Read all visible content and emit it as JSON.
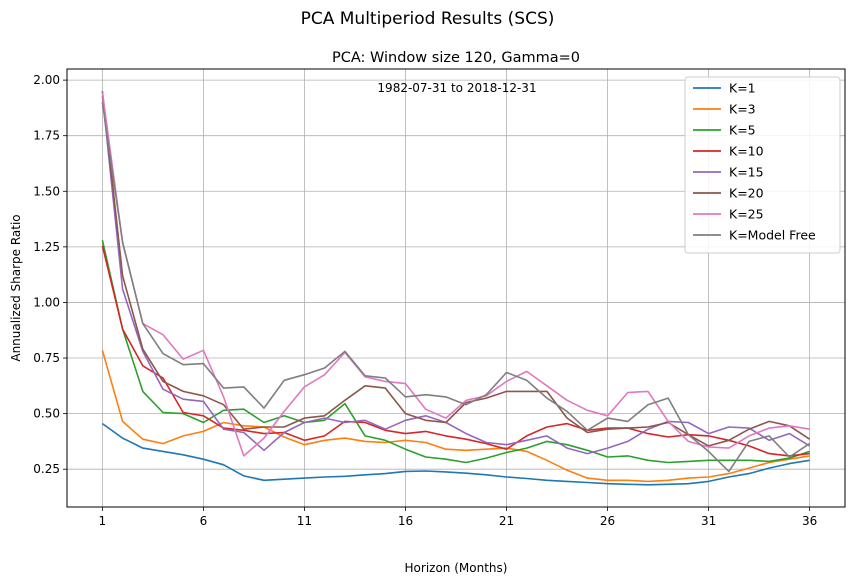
{
  "figure": {
    "suptitle": "PCA Multiperiod Results (SCS)",
    "title": "PCA: Window size 120, Gamma=0",
    "annotation": "1982-07-31 to 2018-12-31"
  },
  "chart_data": {
    "type": "line",
    "title": "PCA: Window size 120, Gamma=0",
    "xlabel": "Horizon (Months)",
    "ylabel": "Annualized Sharpe Ratio",
    "xlim": [
      -0.75,
      37.75
    ],
    "ylim": [
      0.08,
      2.05
    ],
    "xticks": [
      1,
      6,
      11,
      16,
      21,
      26,
      31,
      36
    ],
    "yticks": [
      "0.25",
      "0.50",
      "0.75",
      "1.00",
      "1.25",
      "1.50",
      "1.75",
      "2.00"
    ],
    "ytick_values": [
      0.25,
      0.5,
      0.75,
      1.0,
      1.25,
      1.5,
      1.75,
      2.0
    ],
    "grid": true,
    "legend_position": "top-right",
    "x": [
      1,
      2,
      3,
      4,
      5,
      6,
      7,
      8,
      9,
      10,
      11,
      12,
      13,
      14,
      15,
      16,
      17,
      18,
      19,
      20,
      21,
      22,
      23,
      24,
      25,
      26,
      27,
      28,
      29,
      30,
      31,
      32,
      33,
      34,
      35,
      36
    ],
    "series": [
      {
        "name": "K=1",
        "color": "#1f77b4",
        "values": [
          0.455,
          0.39,
          0.345,
          0.33,
          0.315,
          0.295,
          0.27,
          0.22,
          0.2,
          0.205,
          0.21,
          0.215,
          0.218,
          0.225,
          0.23,
          0.24,
          0.242,
          0.238,
          0.232,
          0.225,
          0.215,
          0.208,
          0.2,
          0.195,
          0.19,
          0.185,
          0.182,
          0.18,
          0.182,
          0.185,
          0.195,
          0.215,
          0.23,
          0.255,
          0.275,
          0.29
        ]
      },
      {
        "name": "K=3",
        "color": "#ff7f0e",
        "values": [
          0.785,
          0.465,
          0.385,
          0.365,
          0.4,
          0.42,
          0.46,
          0.445,
          0.44,
          0.395,
          0.36,
          0.38,
          0.39,
          0.375,
          0.37,
          0.38,
          0.37,
          0.34,
          0.335,
          0.34,
          0.345,
          0.33,
          0.29,
          0.245,
          0.21,
          0.2,
          0.2,
          0.195,
          0.2,
          0.21,
          0.215,
          0.23,
          0.255,
          0.28,
          0.295,
          0.31
        ]
      },
      {
        "name": "K=5",
        "color": "#2ca02c",
        "values": [
          1.28,
          0.88,
          0.6,
          0.505,
          0.5,
          0.46,
          0.515,
          0.52,
          0.46,
          0.49,
          0.46,
          0.47,
          0.545,
          0.4,
          0.38,
          0.34,
          0.305,
          0.295,
          0.28,
          0.3,
          0.325,
          0.345,
          0.375,
          0.36,
          0.335,
          0.305,
          0.31,
          0.29,
          0.28,
          0.285,
          0.29,
          0.29,
          0.29,
          0.285,
          0.3,
          0.33
        ]
      },
      {
        "name": "K=10",
        "color": "#d62728",
        "values": [
          1.255,
          0.88,
          0.715,
          0.66,
          0.505,
          0.49,
          0.435,
          0.425,
          0.41,
          0.415,
          0.38,
          0.4,
          0.465,
          0.46,
          0.425,
          0.41,
          0.42,
          0.4,
          0.385,
          0.365,
          0.34,
          0.4,
          0.44,
          0.455,
          0.425,
          0.435,
          0.435,
          0.41,
          0.395,
          0.405,
          0.4,
          0.38,
          0.355,
          0.32,
          0.31,
          0.32
        ]
      },
      {
        "name": "K=15",
        "color": "#9467bd",
        "values": [
          1.93,
          1.06,
          0.78,
          0.61,
          0.565,
          0.555,
          0.43,
          0.415,
          0.335,
          0.415,
          0.46,
          0.48,
          0.46,
          0.47,
          0.43,
          0.47,
          0.49,
          0.46,
          0.41,
          0.37,
          0.36,
          0.38,
          0.4,
          0.345,
          0.32,
          0.345,
          0.375,
          0.43,
          0.465,
          0.46,
          0.41,
          0.44,
          0.435,
          0.38,
          0.41,
          0.355
        ]
      },
      {
        "name": "K=20",
        "color": "#8c564b",
        "values": [
          1.95,
          1.12,
          0.79,
          0.645,
          0.6,
          0.58,
          0.54,
          0.43,
          0.44,
          0.44,
          0.48,
          0.49,
          0.56,
          0.625,
          0.615,
          0.5,
          0.47,
          0.46,
          0.55,
          0.57,
          0.6,
          0.6,
          0.6,
          0.48,
          0.415,
          0.43,
          0.435,
          0.44,
          0.46,
          0.405,
          0.355,
          0.38,
          0.43,
          0.465,
          0.445,
          0.385
        ]
      },
      {
        "name": "K=25",
        "color": "#e377c2",
        "values": [
          1.945,
          1.27,
          0.905,
          0.855,
          0.745,
          0.785,
          0.575,
          0.31,
          0.39,
          0.51,
          0.62,
          0.675,
          0.775,
          0.665,
          0.645,
          0.635,
          0.52,
          0.48,
          0.56,
          0.58,
          0.645,
          0.69,
          0.625,
          0.56,
          0.515,
          0.49,
          0.595,
          0.6,
          0.465,
          0.375,
          0.35,
          0.345,
          0.4,
          0.435,
          0.445,
          0.43
        ]
      },
      {
        "name": "K=Model Free",
        "color": "#7f7f7f",
        "values": [
          1.9,
          1.27,
          0.905,
          0.77,
          0.72,
          0.725,
          0.615,
          0.62,
          0.525,
          0.65,
          0.675,
          0.705,
          0.78,
          0.67,
          0.66,
          0.575,
          0.585,
          0.575,
          0.54,
          0.585,
          0.685,
          0.65,
          0.57,
          0.51,
          0.425,
          0.48,
          0.465,
          0.54,
          0.57,
          0.405,
          0.33,
          0.24,
          0.375,
          0.4,
          0.305,
          0.365
        ]
      }
    ]
  }
}
